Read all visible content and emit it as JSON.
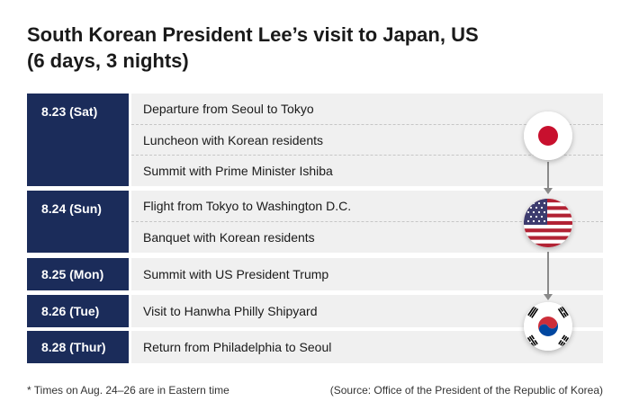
{
  "title_line1": "South Korean President Lee’s visit to Japan, US",
  "title_line2": "(6 days, 3 nights)",
  "days": [
    {
      "date": "8.23 (Sat)",
      "events": [
        "Departure from Seoul to Tokyo",
        "Luncheon with Korean residents",
        "Summit with Prime Minister Ishiba"
      ]
    },
    {
      "date": "8.24 (Sun)",
      "events": [
        "Flight from Tokyo to Washington D.C.",
        "Banquet with Korean residents"
      ]
    },
    {
      "date": "8.25 (Mon)",
      "events": [
        "Summit with US President Trump"
      ]
    },
    {
      "date": "8.26 (Tue)",
      "events": [
        "Visit to Hanwha Philly Shipyard"
      ]
    },
    {
      "date": "8.28 (Thur)",
      "events": [
        "Return from Philadelphia to Seoul"
      ]
    }
  ],
  "flags": [
    "japan-flag-icon",
    "us-flag-icon",
    "south-korea-flag-icon"
  ],
  "colors": {
    "date_bg": "#1b2c5a",
    "event_bg": "#f0f0f0",
    "connector": "#8a8a8a"
  },
  "footnote": "* Times on Aug. 24–26 are in Eastern time",
  "source": "(Source: Office of the President of the Republic of Korea)"
}
